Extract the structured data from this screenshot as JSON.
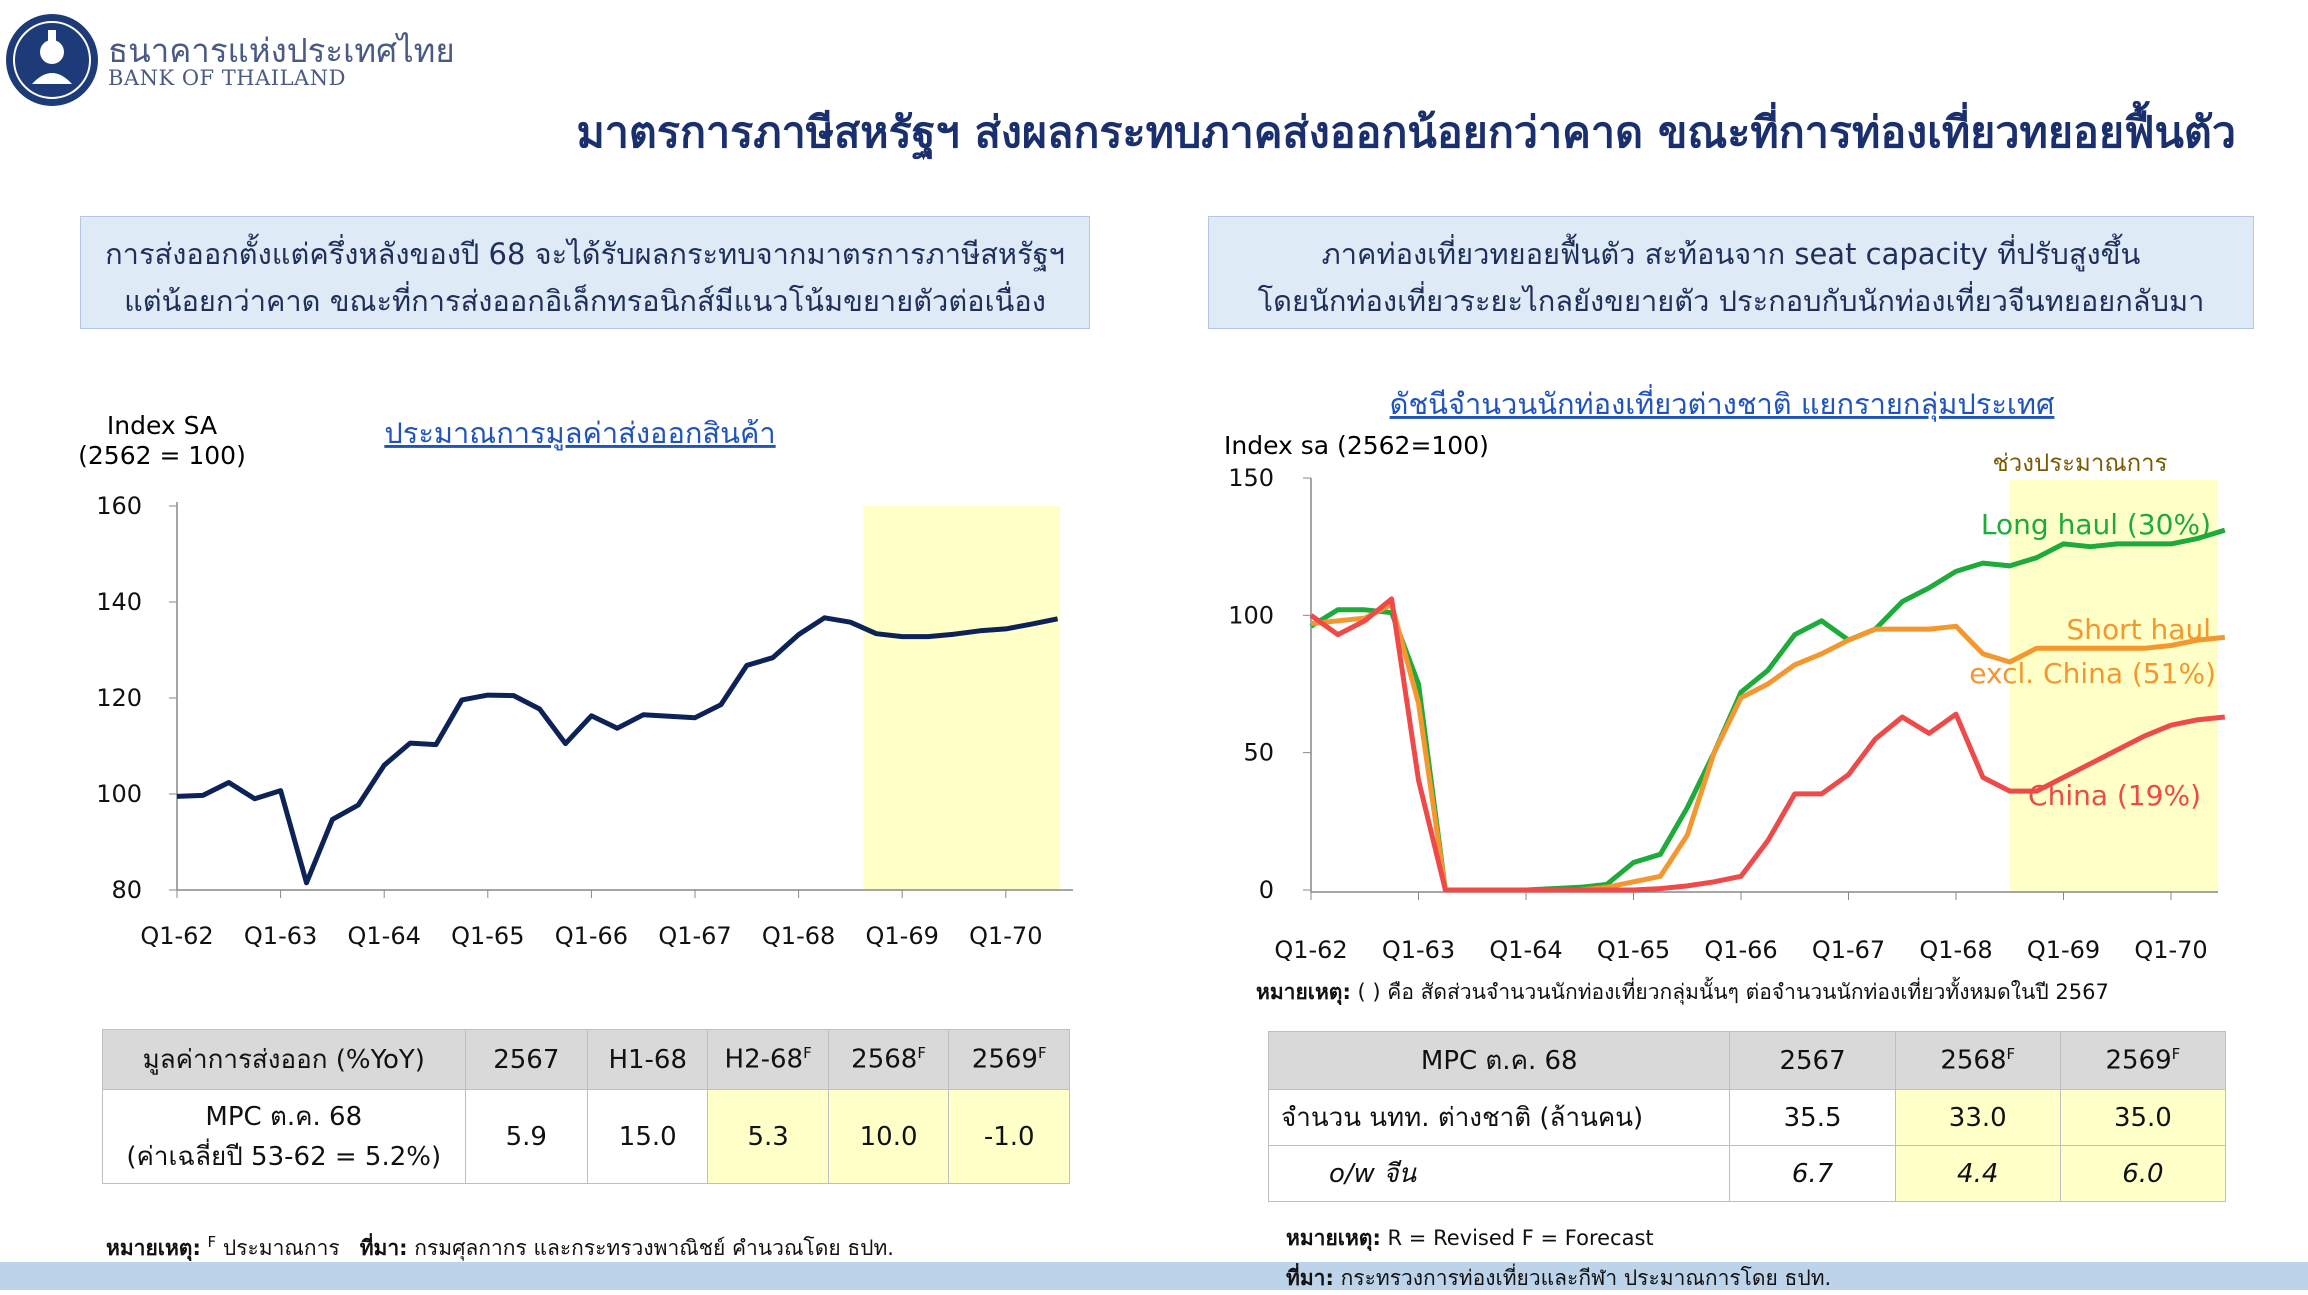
{
  "header": {
    "bank_name_th": "ธนาคารแห่งประเทศไทย",
    "bank_name_en": "BANK OF THAILAND",
    "logo_icon": "bot-emblem-icon",
    "title": "มาตรการภาษีสหรัฐฯ ส่งผลกระทบภาคส่งออกน้อยกว่าคาด ขณะที่การท่องเที่ยวทยอยฟื้นตัว"
  },
  "left": {
    "summary_line1": "การส่งออกตั้งแต่ครึ่งหลังของปี 68 จะได้รับผลกระทบจากมาตรการภาษีสหรัฐฯ",
    "summary_line2": "แต่น้อยกว่าคาด ขณะที่การส่งออกอิเล็กทรอนิกส์มีแนวโน้มขยายตัวต่อเนื่อง",
    "table": {
      "header": [
        "มูลค่าการส่งออก (%YoY)",
        "2567",
        "H1-68",
        "H2-68",
        "2568",
        "2569"
      ],
      "forecast_mark": "F",
      "row_label_line1": "MPC ต.ค. 68",
      "row_label_line2": "(ค่าเฉลี่ยปี 53-62 = 5.2%)",
      "row_values": [
        "5.9",
        "15.0",
        "5.3",
        "10.0",
        "-1.0"
      ]
    },
    "note_label": "หมายเหตุ:",
    "note_text": "ประมาณการ",
    "source_label": "ที่มา:",
    "source_text": "กรมศุลกากร และกระทรวงพาณิชย์ คำนวณโดย ธปท."
  },
  "right": {
    "summary_line1": "ภาคท่องเที่ยวทยอยฟื้นตัว สะท้อนจาก seat capacity ที่ปรับสูงขึ้น",
    "summary_line2": "โดยนักท่องเที่ยวระยะไกลยังขยายตัว ประกอบกับนักท่องเที่ยวจีนทยอยกลับมา",
    "chart_note_label": "หมายเหตุ:",
    "chart_note_text": "( ) คือ สัดส่วนจำนวนนักท่องเที่ยวกลุ่มนั้นๆ ต่อจำนวนนักท่องเที่ยวทั้งหมดในปี 2567",
    "table": {
      "header": [
        "MPC ต.ค. 68",
        "2567",
        "2568",
        "2569"
      ],
      "forecast_mark": "F",
      "rows": [
        {
          "label": "จำนวน นทท. ต่างชาติ (ล้านคน)",
          "values": [
            "35.5",
            "33.0",
            "35.0"
          ]
        },
        {
          "label": "o/w จีน",
          "values": [
            "6.7",
            "4.4",
            "6.0"
          ]
        }
      ]
    },
    "note_label": "หมายเหตุ:",
    "note_text": "R = Revised  F = Forecast",
    "source_label": "ที่มา:",
    "source_text": "กระทรวงการท่องเที่ยวและกีฬา ประมาณการโดย ธปท."
  },
  "colors": {
    "export_line": "#0d2257",
    "long_haul": "#1faa3c",
    "short_haul": "#f5972f",
    "china": "#ee4a4a",
    "forecast_shade": "#ffffc8",
    "title_navy": "#1a2f6e"
  },
  "chart_data": [
    {
      "type": "line",
      "title": "ประมาณการมูลค่าส่งออกสินค้า",
      "ylabel": "Index SA\n(2562 = 100)",
      "ylim": [
        80,
        160
      ],
      "yticks": [
        80,
        100,
        120,
        140,
        160
      ],
      "x_start_quarter": "Q1-62",
      "xticks": [
        "Q1-62",
        "Q1-63",
        "Q1-64",
        "Q1-65",
        "Q1-66",
        "Q1-67",
        "Q1-68",
        "Q1-69",
        "Q1-70"
      ],
      "forecast_from_index": 26.5,
      "series": [
        {
          "values": [
            99.5,
            99.7,
            102.4,
            99,
            100.7,
            81.5,
            94.7,
            97.7,
            106,
            110.6,
            110.3,
            119.6,
            120.6,
            120.5,
            117.7,
            110.5,
            116.3,
            113.7,
            116.5,
            116.2,
            115.9,
            118.6,
            126.8,
            128.4,
            133.2,
            136.7,
            135.8,
            133.4,
            132.8,
            132.8,
            133.3,
            134,
            134.4,
            135.4,
            136.5
          ]
        }
      ]
    },
    {
      "type": "line",
      "title": "ดัชนีจำนวนนักท่องเที่ยวต่างชาติ แยกรายกลุ่มประเทศ",
      "ylabel": "Index sa (2562=100)",
      "ylim": [
        0,
        150
      ],
      "yticks": [
        0,
        50,
        100,
        150
      ],
      "x_start_quarter": "Q1-62",
      "xticks": [
        "Q1-62",
        "Q1-63",
        "Q1-64",
        "Q1-65",
        "Q1-66",
        "Q1-67",
        "Q1-68",
        "Q1-69",
        "Q1-70"
      ],
      "forecast_label": "ช่วงประมาณการ",
      "forecast_from_index": 26.5,
      "series": [
        {
          "name": "Long haul (30%)",
          "values": [
            96,
            102,
            102,
            101,
            75,
            0,
            0,
            0,
            0,
            0.5,
            1,
            2,
            10,
            13,
            30,
            50,
            72,
            80,
            93,
            98,
            91,
            95,
            105,
            110,
            116,
            119,
            118,
            121,
            126,
            125,
            126,
            126,
            126,
            128,
            131
          ]
        },
        {
          "name": "Short haul excl. China (51%)",
          "values": [
            97,
            98,
            99,
            104,
            68,
            0,
            0,
            0,
            0,
            0,
            0,
            1,
            3,
            5,
            20,
            50,
            70,
            75,
            82,
            86,
            91,
            95,
            95,
            95,
            96,
            86,
            83,
            88,
            88,
            88,
            88,
            88,
            89,
            91,
            92
          ]
        },
        {
          "name": "China (19%)",
          "values": [
            100,
            93,
            98,
            106,
            40,
            0,
            0,
            0,
            0,
            0,
            0,
            0,
            0,
            0.5,
            1.5,
            3,
            5,
            18,
            35,
            35,
            42,
            55,
            63,
            57,
            64,
            41,
            36,
            36,
            41,
            46,
            51,
            56,
            60,
            62,
            63
          ]
        }
      ]
    }
  ]
}
